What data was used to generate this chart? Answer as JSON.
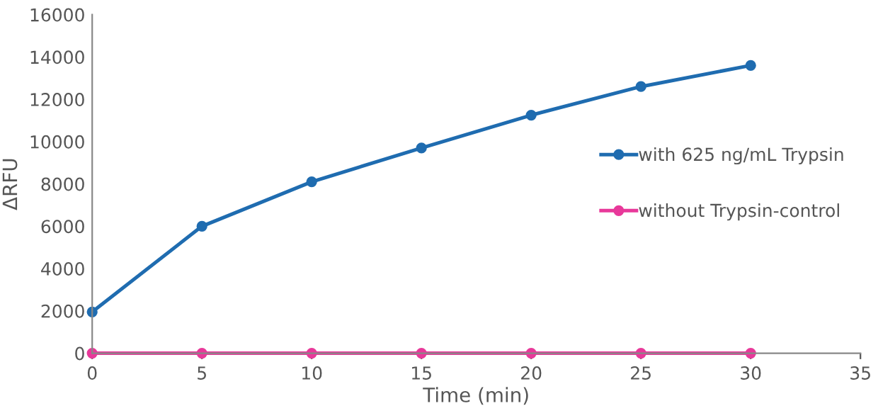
{
  "chart_data": {
    "type": "line",
    "xlabel": "Time (min)",
    "ylabel": "ΔRFU",
    "x": [
      0,
      5,
      10,
      15,
      20,
      25,
      30
    ],
    "series": [
      {
        "name": "with 625 ng/mL Trypsin",
        "color": "#1f6cb0",
        "values": [
          1950,
          6000,
          8100,
          9700,
          11250,
          12600,
          13600
        ]
      },
      {
        "name": "without Trypsin-control",
        "color": "#e8399a",
        "values": [
          0,
          0,
          0,
          0,
          0,
          0,
          0
        ]
      }
    ],
    "xlim": [
      0,
      35
    ],
    "xticks": [
      0,
      5,
      10,
      15,
      20,
      25,
      30,
      35
    ],
    "ylim": [
      0,
      16000
    ],
    "yticks": [
      0,
      2000,
      4000,
      6000,
      8000,
      10000,
      12000,
      14000,
      16000
    ],
    "grid": false,
    "legend": "right",
    "marker": "circle",
    "line_style": "solid"
  }
}
